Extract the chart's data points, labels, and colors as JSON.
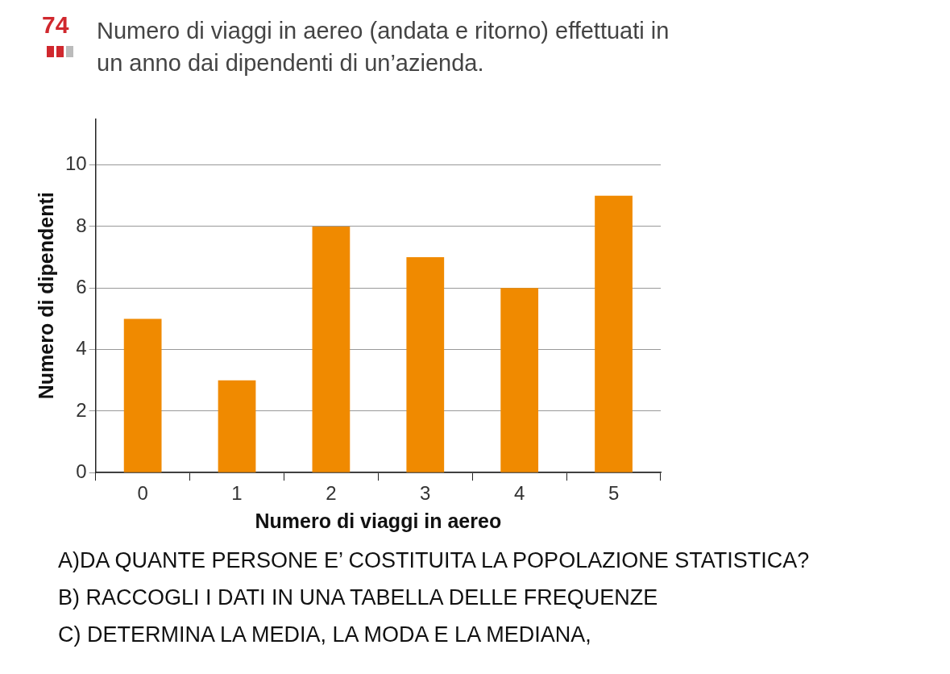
{
  "chart_data": {
    "type": "bar",
    "title": "Numero di viaggi in aereo (andata e ritorno) effettuati in un anno dai dipendenti di un’azienda.",
    "xlabel": "Numero di viaggi in aereo",
    "ylabel": "Numero di dipendenti",
    "categories": [
      "0",
      "1",
      "2",
      "3",
      "4",
      "5"
    ],
    "values": [
      5,
      3,
      8,
      7,
      6,
      9
    ],
    "color": "#f08a00",
    "ylim": [
      0,
      11.5
    ],
    "yticks": [
      0,
      2,
      4,
      6,
      8,
      10
    ],
    "grid": "y",
    "annotations": [
      "74",
      "A)DA QUANTE PERSONE E’ COSTITUITA LA POPOLAZIONE STATISTICA?",
      "B) RACCOGLI I DATI IN UNA TABELLA DELLE FREQUENZE",
      "C) DETERMINA LA MEDIA, LA MODA E LA MEDIANA,"
    ]
  }
}
